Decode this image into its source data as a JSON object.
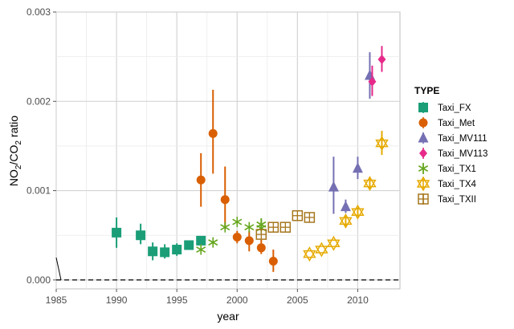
{
  "chart_data": {
    "type": "scatter",
    "xlabel": "year",
    "ylabel_main": "NO",
    "ylabel_sub1": "2",
    "ylabel_mid": "/CO",
    "ylabel_sub2": "2",
    "ylabel_tail": " ratio",
    "xlim": [
      1985,
      2013.5
    ],
    "ylim": [
      -0.0001,
      0.003
    ],
    "x_ticks": [
      1985,
      1990,
      1995,
      2000,
      2005,
      2010
    ],
    "x_tick_labels": [
      "1985",
      "1990",
      "1995",
      "2000",
      "2005",
      "2010"
    ],
    "y_ticks": [
      0,
      0.001,
      0.002,
      0.003
    ],
    "y_tick_labels": [
      "0.000",
      "0.001",
      "0.002",
      "0.003"
    ],
    "grid": true,
    "reference_line": 0,
    "legend": {
      "title": "TYPE",
      "position": "right"
    },
    "series": [
      {
        "name": "Taxi_FX",
        "color": "#1b9e77",
        "shape": "square",
        "points": [
          {
            "x": 1990,
            "y": 0.00053,
            "lo": 0.00036,
            "hi": 0.0007
          },
          {
            "x": 1992,
            "y": 0.0005,
            "lo": 0.0004,
            "hi": 0.00063
          },
          {
            "x": 1993,
            "y": 0.00032,
            "lo": 0.00022,
            "hi": 0.00042
          },
          {
            "x": 1994,
            "y": 0.00031,
            "lo": 0.00024,
            "hi": 0.0004
          },
          {
            "x": 1995,
            "y": 0.00034,
            "lo": 0.00027,
            "hi": 0.00041
          },
          {
            "x": 1996,
            "y": 0.00039,
            "lo": 0.00035,
            "hi": 0.00044
          },
          {
            "x": 1997,
            "y": 0.00044,
            "lo": 0.0004,
            "hi": 0.00048
          }
        ]
      },
      {
        "name": "Taxi_Met",
        "color": "#d95f02",
        "shape": "circle",
        "points": [
          {
            "x": 1997,
            "y": 0.00112,
            "lo": 0.00082,
            "hi": 0.00142
          },
          {
            "x": 1998,
            "y": 0.00164,
            "lo": 0.00119,
            "hi": 0.00213
          },
          {
            "x": 1999,
            "y": 0.0009,
            "lo": 0.00057,
            "hi": 0.00127
          },
          {
            "x": 2000,
            "y": 0.00048,
            "lo": 0.00041,
            "hi": 0.00055
          },
          {
            "x": 2001,
            "y": 0.00044,
            "lo": 0.00032,
            "hi": 0.00055
          },
          {
            "x": 2002,
            "y": 0.00036,
            "lo": 0.00029,
            "hi": 0.00045
          },
          {
            "x": 2003,
            "y": 0.00021,
            "lo": 9e-05,
            "hi": 0.00034
          }
        ]
      },
      {
        "name": "Taxi_MV111",
        "color": "#7570b3",
        "shape": "triangle",
        "points": [
          {
            "x": 2008,
            "y": 0.00104,
            "lo": 0.00074,
            "hi": 0.00138
          },
          {
            "x": 2009,
            "y": 0.00082,
            "lo": 0.00075,
            "hi": 0.0009
          },
          {
            "x": 2010,
            "y": 0.00125,
            "lo": 0.00113,
            "hi": 0.00138
          },
          {
            "x": 2011,
            "y": 0.00229,
            "lo": 0.00203,
            "hi": 0.00255
          }
        ]
      },
      {
        "name": "Taxi_MV113",
        "color": "#e7298a",
        "shape": "diamond",
        "points": [
          {
            "x": 2011.2,
            "y": 0.00222,
            "lo": 0.00206,
            "hi": 0.0024
          },
          {
            "x": 2012,
            "y": 0.00247,
            "lo": 0.00233,
            "hi": 0.00262
          }
        ]
      },
      {
        "name": "Taxi_TX1",
        "color": "#66a61e",
        "shape": "asterisk",
        "points": [
          {
            "x": 1997,
            "y": 0.00034
          },
          {
            "x": 1998,
            "y": 0.00042
          },
          {
            "x": 1999,
            "y": 0.00059
          },
          {
            "x": 2000,
            "y": 0.00065
          },
          {
            "x": 2001,
            "y": 0.00059
          },
          {
            "x": 2002,
            "y": 0.00062,
            "lo": 0.00055,
            "hi": 0.00069
          },
          {
            "x": 2002,
            "y": 0.00058
          }
        ]
      },
      {
        "name": "Taxi_TX4",
        "color": "#e6ab02",
        "shape": "star-of-david",
        "points": [
          {
            "x": 2006,
            "y": 0.00029
          },
          {
            "x": 2007,
            "y": 0.00034
          },
          {
            "x": 2008,
            "y": 0.00041
          },
          {
            "x": 2009,
            "y": 0.00066,
            "lo": 0.0006,
            "hi": 0.00072
          },
          {
            "x": 2010,
            "y": 0.00076,
            "lo": 0.00071,
            "hi": 0.00081
          },
          {
            "x": 2011,
            "y": 0.00108,
            "lo": 0.00102,
            "hi": 0.00114
          },
          {
            "x": 2012,
            "y": 0.00153,
            "lo": 0.0014,
            "hi": 0.00167
          }
        ]
      },
      {
        "name": "Taxi_TXII",
        "color": "#a6761d",
        "shape": "boxplus",
        "points": [
          {
            "x": 2002,
            "y": 0.00051
          },
          {
            "x": 2003,
            "y": 0.00059
          },
          {
            "x": 2004,
            "y": 0.00059
          },
          {
            "x": 2005,
            "y": 0.00072
          },
          {
            "x": 2006,
            "y": 0.0007
          }
        ]
      }
    ]
  }
}
